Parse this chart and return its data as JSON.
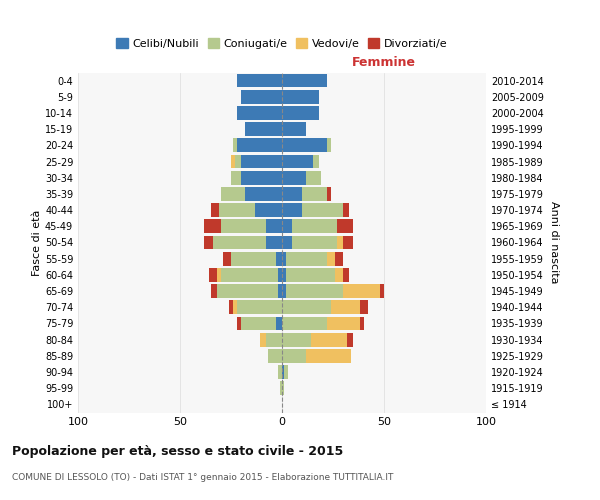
{
  "age_groups": [
    "100+",
    "95-99",
    "90-94",
    "85-89",
    "80-84",
    "75-79",
    "70-74",
    "65-69",
    "60-64",
    "55-59",
    "50-54",
    "45-49",
    "40-44",
    "35-39",
    "30-34",
    "25-29",
    "20-24",
    "15-19",
    "10-14",
    "5-9",
    "0-4"
  ],
  "birth_years": [
    "≤ 1914",
    "1915-1919",
    "1920-1924",
    "1925-1929",
    "1930-1934",
    "1935-1939",
    "1940-1944",
    "1945-1949",
    "1950-1954",
    "1955-1959",
    "1960-1964",
    "1965-1969",
    "1970-1974",
    "1975-1979",
    "1980-1984",
    "1985-1989",
    "1990-1994",
    "1995-1999",
    "2000-2004",
    "2005-2009",
    "2010-2014"
  ],
  "male": {
    "celibe": [
      0,
      0,
      0,
      0,
      0,
      3,
      0,
      2,
      2,
      3,
      8,
      8,
      13,
      18,
      20,
      20,
      22,
      18,
      22,
      20,
      22
    ],
    "coniugato": [
      0,
      1,
      2,
      7,
      8,
      17,
      22,
      30,
      28,
      22,
      26,
      22,
      18,
      12,
      5,
      3,
      2,
      0,
      0,
      0,
      0
    ],
    "vedovo": [
      0,
      0,
      0,
      0,
      3,
      0,
      2,
      0,
      2,
      0,
      0,
      0,
      0,
      0,
      0,
      2,
      0,
      0,
      0,
      0,
      0
    ],
    "divorziato": [
      0,
      0,
      0,
      0,
      0,
      2,
      2,
      3,
      4,
      4,
      4,
      8,
      4,
      0,
      0,
      0,
      0,
      0,
      0,
      0,
      0
    ]
  },
  "female": {
    "nubile": [
      0,
      0,
      1,
      0,
      0,
      0,
      0,
      2,
      2,
      2,
      5,
      5,
      10,
      10,
      12,
      15,
      22,
      12,
      18,
      18,
      22
    ],
    "coniugata": [
      0,
      1,
      2,
      12,
      14,
      22,
      24,
      28,
      24,
      20,
      22,
      22,
      20,
      12,
      7,
      3,
      2,
      0,
      0,
      0,
      0
    ],
    "vedova": [
      0,
      0,
      0,
      22,
      18,
      16,
      14,
      18,
      4,
      4,
      3,
      0,
      0,
      0,
      0,
      0,
      0,
      0,
      0,
      0,
      0
    ],
    "divorziata": [
      0,
      0,
      0,
      0,
      3,
      2,
      4,
      2,
      3,
      4,
      5,
      8,
      3,
      2,
      0,
      0,
      0,
      0,
      0,
      0,
      0
    ]
  },
  "colors": {
    "celibe_nubile": "#3d7ab5",
    "coniugato_a": "#b5c98e",
    "vedovo_a": "#f0c060",
    "divorziato_a": "#c0392b"
  },
  "xlim": [
    -100,
    100
  ],
  "xticks": [
    -100,
    -50,
    0,
    50,
    100
  ],
  "xticklabels": [
    "100",
    "50",
    "0",
    "50",
    "100"
  ],
  "title": "Popolazione per età, sesso e stato civile - 2015",
  "subtitle": "COMUNE DI LESSOLO (TO) - Dati ISTAT 1° gennaio 2015 - Elaborazione TUTTITALIA.IT",
  "ylabel_left": "Fasce di età",
  "ylabel_right": "Anni di nascita",
  "header_right": "Femmine",
  "background_color": "#ffffff",
  "plot_bg_color": "#f7f7f7",
  "grid_color": "#dddddd"
}
